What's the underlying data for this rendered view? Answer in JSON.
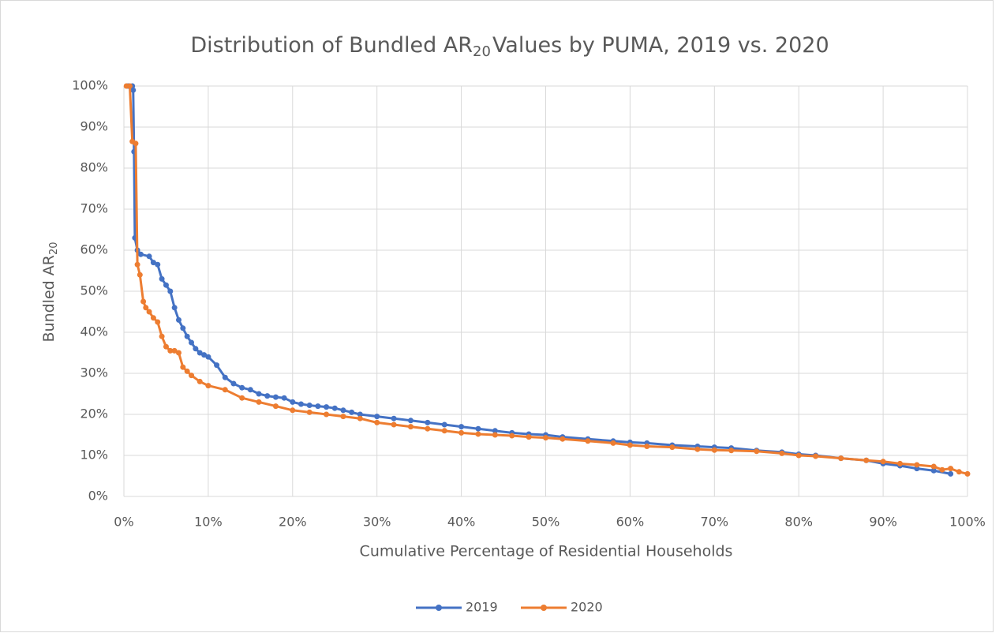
{
  "chart_data": {
    "type": "line",
    "title_parts": [
      "Distribution of Bundled AR",
      "20",
      "Values by PUMA, 2019 vs. 2020"
    ],
    "x_label": "Cumulative Percentage of Residential Households",
    "y_label_parts": [
      "Bundled AR",
      "20"
    ],
    "xlim": [
      0,
      100
    ],
    "ylim": [
      0,
      100
    ],
    "xticks": [
      {
        "value": 0,
        "label": "0%"
      },
      {
        "value": 10,
        "label": "10%"
      },
      {
        "value": 20,
        "label": "20%"
      },
      {
        "value": 30,
        "label": "30%"
      },
      {
        "value": 40,
        "label": "40%"
      },
      {
        "value": 50,
        "label": "50%"
      },
      {
        "value": 60,
        "label": "60%"
      },
      {
        "value": 70,
        "label": "70%"
      },
      {
        "value": 80,
        "label": "80%"
      },
      {
        "value": 90,
        "label": "90%"
      },
      {
        "value": 100,
        "label": "100%"
      }
    ],
    "yticks": [
      {
        "value": 0,
        "label": "0%"
      },
      {
        "value": 10,
        "label": "10%"
      },
      {
        "value": 20,
        "label": "20%"
      },
      {
        "value": 30,
        "label": "30%"
      },
      {
        "value": 40,
        "label": "40%"
      },
      {
        "value": 50,
        "label": "50%"
      },
      {
        "value": 60,
        "label": "60%"
      },
      {
        "value": 70,
        "label": "70%"
      },
      {
        "value": 80,
        "label": "80%"
      },
      {
        "value": 90,
        "label": "90%"
      },
      {
        "value": 100,
        "label": "100%"
      }
    ],
    "grid": true,
    "legend": "bottom",
    "series": [
      {
        "name": "2019",
        "color": "#4472c4",
        "x": [
          0.5,
          1.0,
          1.1,
          1.2,
          1.3,
          1.6,
          2,
          3,
          3.5,
          4,
          4.5,
          5,
          5.5,
          6,
          6.5,
          7,
          7.5,
          8,
          8.5,
          9,
          9.5,
          10,
          11,
          12,
          13,
          14,
          15,
          16,
          17,
          18,
          19,
          20,
          21,
          22,
          23,
          24,
          25,
          26,
          27,
          28,
          30,
          32,
          34,
          36,
          38,
          40,
          42,
          44,
          46,
          48,
          50,
          52,
          55,
          58,
          60,
          62,
          65,
          68,
          70,
          72,
          75,
          78,
          80,
          82,
          85,
          88,
          90,
          92,
          94,
          96,
          98
        ],
        "values": [
          100,
          100,
          99,
          84,
          63,
          60,
          59,
          58.5,
          57,
          56.5,
          53,
          51.5,
          50,
          46,
          43,
          41,
          39,
          37.5,
          36,
          35,
          34.5,
          34,
          32,
          29,
          27.5,
          26.5,
          26,
          25,
          24.5,
          24.2,
          24,
          23,
          22.5,
          22.2,
          22,
          21.8,
          21.5,
          21,
          20.5,
          20,
          19.5,
          19,
          18.5,
          18,
          17.5,
          17,
          16.5,
          16,
          15.5,
          15.2,
          15,
          14.5,
          14,
          13.5,
          13.2,
          13,
          12.5,
          12.2,
          12,
          11.8,
          11.2,
          10.8,
          10.3,
          10,
          9.3,
          8.8,
          8,
          7.5,
          6.8,
          6.3,
          5.5
        ]
      },
      {
        "name": "2020",
        "color": "#ed7d31",
        "x": [
          0.3,
          0.7,
          1.0,
          1.4,
          1.6,
          1.9,
          2.3,
          2.6,
          3,
          3.5,
          4,
          4.5,
          5,
          5.5,
          6,
          6.5,
          7,
          7.5,
          8,
          9,
          10,
          12,
          14,
          16,
          18,
          20,
          22,
          24,
          26,
          28,
          30,
          32,
          34,
          36,
          38,
          40,
          42,
          44,
          46,
          48,
          50,
          52,
          55,
          58,
          60,
          62,
          65,
          68,
          70,
          72,
          75,
          78,
          80,
          82,
          85,
          88,
          90,
          92,
          94,
          96,
          97,
          98,
          99,
          100
        ],
        "values": [
          100,
          100,
          86.5,
          86,
          56.5,
          54,
          47.5,
          46,
          45,
          43.5,
          42.5,
          39,
          36.5,
          35.5,
          35.5,
          35,
          31.5,
          30.5,
          29.5,
          28,
          27,
          26,
          24,
          23,
          22,
          21,
          20.5,
          20,
          19.5,
          19,
          18,
          17.5,
          17,
          16.5,
          16,
          15.5,
          15.2,
          15,
          14.8,
          14.5,
          14.3,
          14,
          13.5,
          13,
          12.5,
          12.2,
          12,
          11.5,
          11.3,
          11.2,
          11,
          10.5,
          10,
          9.8,
          9.3,
          8.8,
          8.5,
          8,
          7.7,
          7.3,
          6.5,
          6.8,
          6,
          5.5
        ]
      }
    ]
  }
}
